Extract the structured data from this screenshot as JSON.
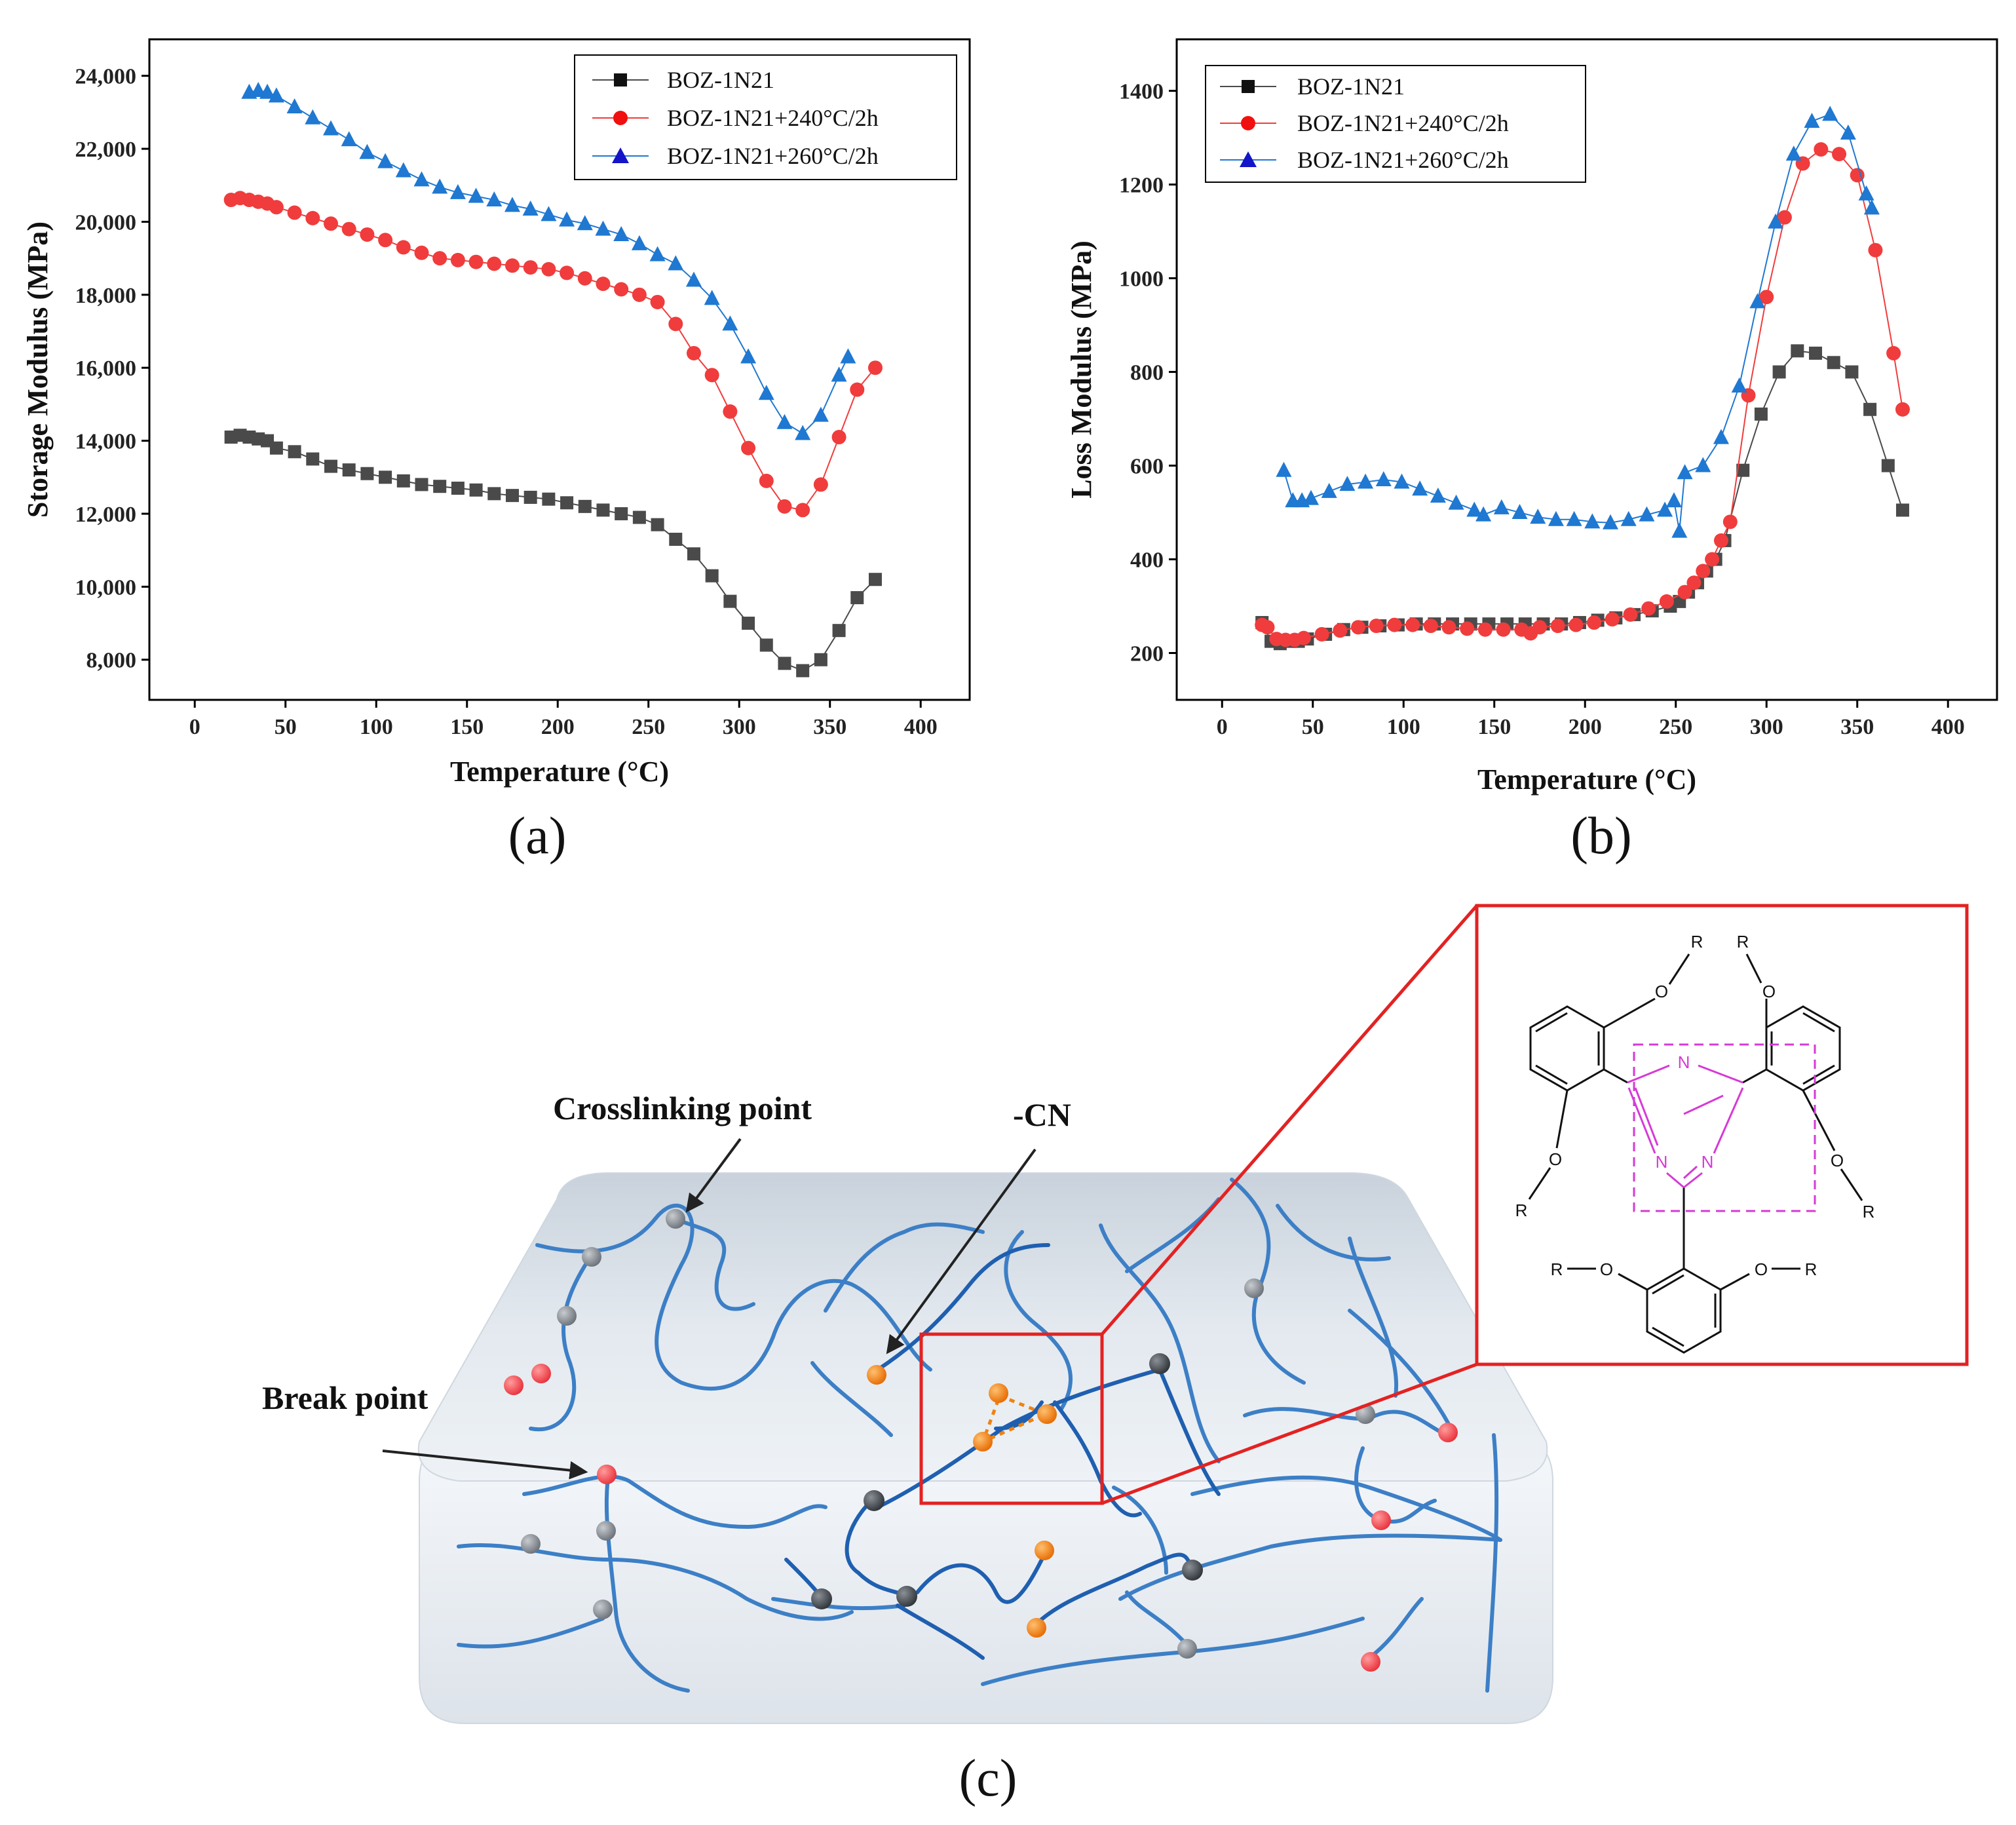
{
  "colors": {
    "black_series": "#4a4a4a",
    "red_series": "#f03c3c",
    "blue_series": "#1f78d1",
    "frame": "#000000",
    "inset_box": "#e32222",
    "triazine": "#d63ad6",
    "fiber": "#3c7fc6",
    "orange_node": "#f0820f"
  },
  "chart_data": [
    {
      "id": "a",
      "type": "line",
      "panel_label": "(a)",
      "xlabel": "Temperature (°C)",
      "ylabel": "Storage Modulus (MPa)",
      "xlim": [
        -25,
        427
      ],
      "ylim": [
        6900,
        25000
      ],
      "xticks": [
        0,
        50,
        100,
        150,
        200,
        250,
        300,
        350,
        400
      ],
      "xtick_labels": [
        "0",
        "50",
        "100",
        "150",
        "200",
        "250",
        "300",
        "350",
        "400"
      ],
      "yticks": [
        8000,
        10000,
        12000,
        14000,
        16000,
        18000,
        20000,
        22000,
        24000
      ],
      "ytick_labels": [
        "8,000",
        "10,000",
        "12,000",
        "14,000",
        "16,000",
        "18,000",
        "20,000",
        "22,000",
        "24,000"
      ],
      "legend_position": "top-right",
      "series": [
        {
          "name": "BOZ-1N21",
          "marker": "square",
          "color": "#4a4a4a",
          "x": [
            20,
            25,
            30,
            35,
            40,
            45,
            55,
            65,
            75,
            85,
            95,
            105,
            115,
            125,
            135,
            145,
            155,
            165,
            175,
            185,
            195,
            205,
            215,
            225,
            235,
            245,
            255,
            265,
            275,
            285,
            295,
            305,
            315,
            325,
            335,
            345,
            355,
            365,
            375
          ],
          "y": [
            14100,
            14150,
            14100,
            14050,
            14000,
            13800,
            13700,
            13500,
            13300,
            13200,
            13100,
            13000,
            12900,
            12800,
            12750,
            12700,
            12650,
            12550,
            12500,
            12450,
            12400,
            12300,
            12200,
            12100,
            12000,
            11900,
            11700,
            11300,
            10900,
            10300,
            9600,
            9000,
            8400,
            7900,
            7700,
            8000,
            8800,
            9700,
            10200
          ]
        },
        {
          "name": "BOZ-1N21+240°C/2h",
          "marker": "circle",
          "color": "#f03c3c",
          "x": [
            20,
            25,
            30,
            35,
            40,
            45,
            55,
            65,
            75,
            85,
            95,
            105,
            115,
            125,
            135,
            145,
            155,
            165,
            175,
            185,
            195,
            205,
            215,
            225,
            235,
            245,
            255,
            265,
            275,
            285,
            295,
            305,
            315,
            325,
            335,
            345,
            355,
            365,
            375
          ],
          "y": [
            20600,
            20650,
            20600,
            20550,
            20500,
            20400,
            20250,
            20100,
            19950,
            19800,
            19650,
            19500,
            19300,
            19150,
            19000,
            18950,
            18900,
            18850,
            18800,
            18750,
            18700,
            18600,
            18450,
            18300,
            18150,
            18000,
            17800,
            17200,
            16400,
            15800,
            14800,
            13800,
            12900,
            12200,
            12100,
            12800,
            14100,
            15400,
            16000
          ]
        },
        {
          "name": "BOZ-1N21+260°C/2h",
          "marker": "triangle",
          "color": "#1f78d1",
          "x": [
            30,
            35,
            40,
            45,
            55,
            65,
            75,
            85,
            95,
            105,
            115,
            125,
            135,
            145,
            155,
            165,
            175,
            185,
            195,
            205,
            215,
            225,
            235,
            245,
            255,
            265,
            275,
            285,
            295,
            305,
            315,
            325,
            335,
            345,
            355,
            360
          ],
          "y": [
            23550,
            23600,
            23550,
            23450,
            23150,
            22850,
            22550,
            22250,
            21900,
            21650,
            21400,
            21150,
            20950,
            20800,
            20700,
            20600,
            20450,
            20350,
            20200,
            20050,
            19950,
            19800,
            19650,
            19400,
            19100,
            18850,
            18400,
            17900,
            17200,
            16300,
            15300,
            14500,
            14200,
            14700,
            15800,
            16300
          ]
        }
      ]
    },
    {
      "id": "b",
      "type": "line",
      "panel_label": "(b)",
      "xlabel": "Temperature (°C)",
      "ylabel": "Loss Modulus (MPa)",
      "xlim": [
        -25,
        427
      ],
      "ylim": [
        100,
        1510
      ],
      "xticks": [
        0,
        50,
        100,
        150,
        200,
        250,
        300,
        350,
        400
      ],
      "xtick_labels": [
        "0",
        "50",
        "100",
        "150",
        "200",
        "250",
        "300",
        "350",
        "400"
      ],
      "yticks": [
        200,
        400,
        600,
        800,
        1000,
        1200,
        1400
      ],
      "ytick_labels": [
        "200",
        "400",
        "600",
        "800",
        "1000",
        "1200",
        "1400"
      ],
      "legend_position": "top-left",
      "series": [
        {
          "name": "BOZ-1N21",
          "marker": "square",
          "color": "#4a4a4a",
          "x": [
            22,
            27,
            32,
            37,
            42,
            47,
            57,
            67,
            77,
            87,
            97,
            107,
            117,
            127,
            137,
            147,
            157,
            167,
            177,
            187,
            197,
            207,
            217,
            227,
            237,
            247,
            252,
            257,
            262,
            267,
            272,
            277,
            287,
            297,
            307,
            317,
            327,
            337,
            347,
            357,
            367,
            375
          ],
          "y": [
            265,
            225,
            220,
            225,
            225,
            230,
            240,
            250,
            255,
            258,
            260,
            262,
            262,
            262,
            262,
            262,
            262,
            262,
            262,
            262,
            265,
            270,
            275,
            282,
            290,
            300,
            310,
            330,
            350,
            375,
            400,
            440,
            590,
            710,
            800,
            845,
            840,
            820,
            800,
            720,
            600,
            505
          ]
        },
        {
          "name": "BOZ-1N21+240°C/2h",
          "marker": "circle",
          "color": "#f03c3c",
          "x": [
            22,
            25,
            30,
            35,
            40,
            45,
            55,
            65,
            75,
            85,
            95,
            105,
            115,
            125,
            135,
            145,
            155,
            165,
            170,
            175,
            185,
            195,
            205,
            215,
            225,
            235,
            245,
            255,
            260,
            265,
            270,
            275,
            280,
            290,
            300,
            310,
            320,
            330,
            340,
            350,
            360,
            370,
            375
          ],
          "y": [
            260,
            255,
            230,
            228,
            228,
            232,
            240,
            248,
            255,
            258,
            260,
            260,
            258,
            255,
            252,
            250,
            250,
            250,
            242,
            255,
            258,
            260,
            265,
            272,
            282,
            295,
            310,
            330,
            350,
            375,
            400,
            440,
            480,
            750,
            960,
            1130,
            1245,
            1275,
            1265,
            1220,
            1060,
            840,
            720
          ]
        },
        {
          "name": "BOZ-1N21+260°C/2h",
          "marker": "triangle",
          "color": "#1f78d1",
          "x": [
            34,
            39,
            44,
            49,
            59,
            69,
            79,
            89,
            99,
            109,
            119,
            129,
            139,
            144,
            154,
            164,
            174,
            184,
            194,
            204,
            214,
            224,
            234,
            244,
            249,
            252,
            255,
            265,
            275,
            285,
            295,
            305,
            315,
            325,
            335,
            345,
            355,
            358
          ],
          "y": [
            590,
            525,
            525,
            530,
            545,
            560,
            565,
            570,
            565,
            550,
            535,
            520,
            505,
            495,
            510,
            500,
            490,
            485,
            485,
            480,
            478,
            485,
            495,
            505,
            525,
            460,
            585,
            600,
            660,
            770,
            950,
            1120,
            1265,
            1335,
            1350,
            1310,
            1180,
            1150
          ]
        }
      ]
    }
  ],
  "panel_c": {
    "label": "(c)",
    "callouts": {
      "crosslinking": "Crosslinking point",
      "cn": "-CN",
      "break": "Break point"
    },
    "structure": {
      "substituent": "R",
      "oxygen": "O",
      "ring_nitrogen": "N",
      "left_top": {
        "o": "O",
        "r": "R"
      },
      "right_top": {
        "o": "O",
        "r": "R"
      },
      "left_low": {
        "o": "O",
        "r": "R"
      },
      "right_low": {
        "o": "O",
        "r": "R"
      },
      "bottom_left": {
        "o": "O",
        "r": "R"
      },
      "bottom_right": {
        "o": "O",
        "r": "R"
      },
      "triazine_n": [
        "N",
        "N",
        "N"
      ]
    }
  }
}
